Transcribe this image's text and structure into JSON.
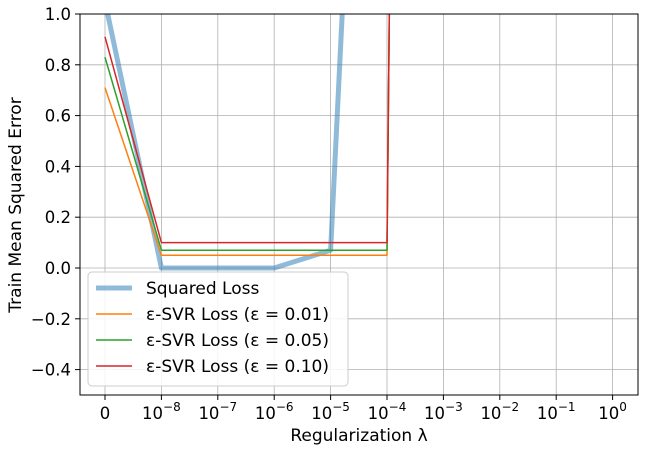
{
  "chart_data": {
    "type": "line",
    "title": "",
    "xlabel": "Regularization λ",
    "ylabel": "Train Mean Squared Error",
    "ylim": [
      -0.5,
      1.0
    ],
    "grid": true,
    "legend_position": "lower-left",
    "x_categories": [
      "0",
      "1e-8",
      "1e-7",
      "1e-6",
      "1e-5",
      "1e-4",
      "1e-3",
      "1e-2",
      "1e-1",
      "1e0"
    ],
    "x_tick_labels": [
      {
        "base": "0",
        "exp": ""
      },
      {
        "base": "10",
        "exp": "−8"
      },
      {
        "base": "10",
        "exp": "−7"
      },
      {
        "base": "10",
        "exp": "−6"
      },
      {
        "base": "10",
        "exp": "−5"
      },
      {
        "base": "10",
        "exp": "−4"
      },
      {
        "base": "10",
        "exp": "−3"
      },
      {
        "base": "10",
        "exp": "−2"
      },
      {
        "base": "10",
        "exp": "−1"
      },
      {
        "base": "10",
        "exp": "0"
      }
    ],
    "y_ticks": [
      -0.4,
      -0.2,
      0.0,
      0.2,
      0.4,
      0.6,
      0.8,
      1.0
    ],
    "y_tick_labels": [
      "−0.4",
      "−0.2",
      "0.0",
      "0.2",
      "0.4",
      "0.6",
      "0.8",
      "1.0"
    ],
    "series": [
      {
        "name": "Squared Loss",
        "color": "#1f77b4",
        "width": 5,
        "opacity": 0.5,
        "points": [
          [
            0,
            1.05
          ],
          [
            1,
            0.0
          ],
          [
            2,
            0.0
          ],
          [
            3,
            0.0
          ],
          [
            4,
            0.07
          ],
          [
            4.25,
            1.2
          ]
        ]
      },
      {
        "name": "ε-SVR Loss (ε = 0.01)",
        "color": "#ff7f0e",
        "width": 1.5,
        "opacity": 1,
        "points": [
          [
            0,
            0.71
          ],
          [
            1,
            0.05
          ],
          [
            2,
            0.05
          ],
          [
            3,
            0.05
          ],
          [
            4,
            0.05
          ],
          [
            5,
            0.05
          ],
          [
            5.05,
            1.2
          ]
        ]
      },
      {
        "name": "ε-SVR Loss (ε = 0.05)",
        "color": "#2ca02c",
        "width": 1.5,
        "opacity": 1,
        "points": [
          [
            0,
            0.83
          ],
          [
            1,
            0.07
          ],
          [
            2,
            0.07
          ],
          [
            3,
            0.07
          ],
          [
            4,
            0.07
          ],
          [
            5,
            0.07
          ],
          [
            5.05,
            1.2
          ]
        ]
      },
      {
        "name": "ε-SVR Loss (ε = 0.10)",
        "color": "#d62728",
        "width": 1.5,
        "opacity": 1,
        "points": [
          [
            0,
            0.91
          ],
          [
            1,
            0.1
          ],
          [
            2,
            0.1
          ],
          [
            3,
            0.1
          ],
          [
            4,
            0.1
          ],
          [
            5,
            0.1
          ],
          [
            5.05,
            1.2
          ]
        ]
      }
    ]
  }
}
